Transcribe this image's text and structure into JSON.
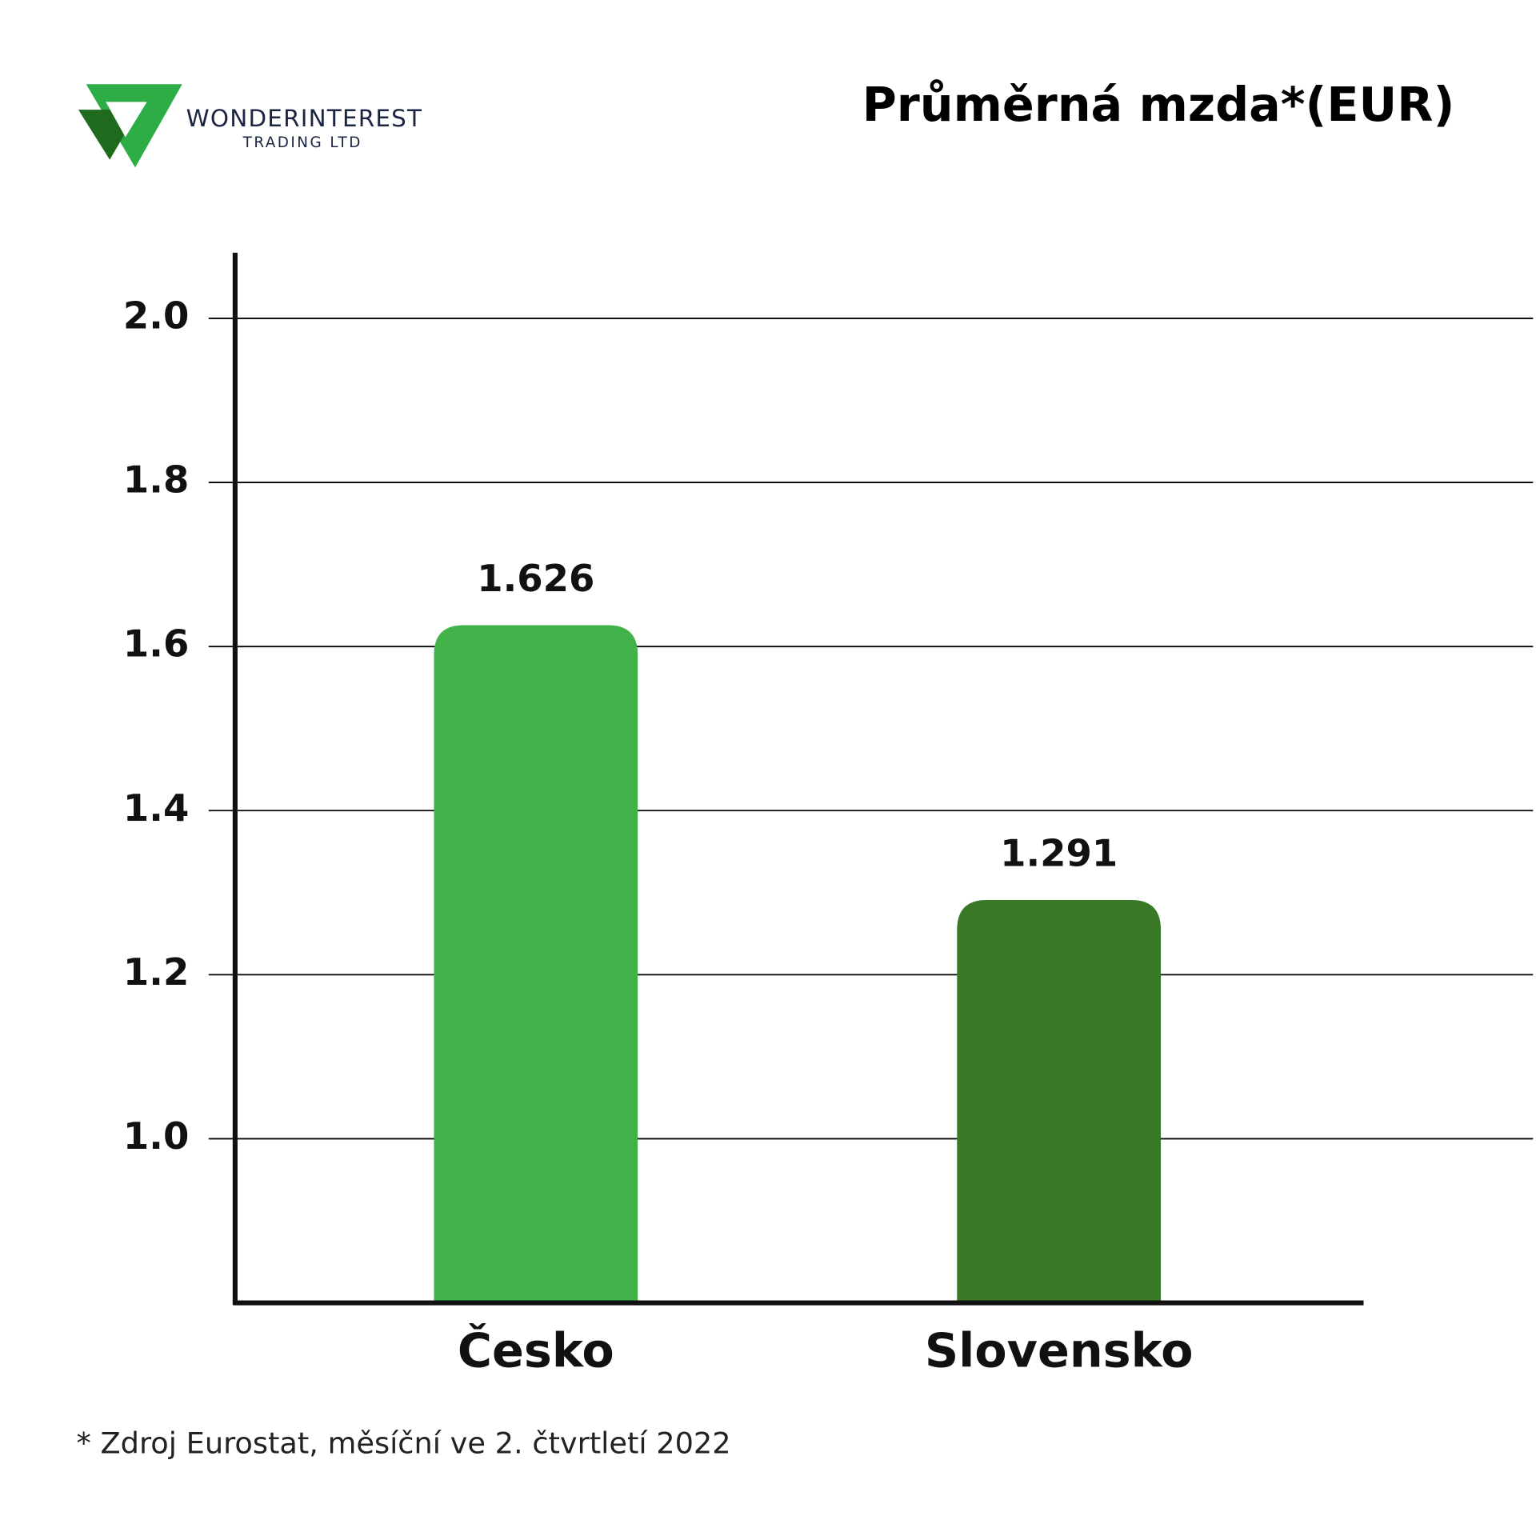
{
  "logo": {
    "name": "WONDERINTEREST",
    "tagline": "TRADING LTD"
  },
  "chart_data": {
    "type": "bar",
    "title": "Průměrná mzda*(EUR)",
    "categories": [
      "Česko",
      "Slovensko"
    ],
    "values": [
      1.626,
      1.291
    ],
    "colors": [
      "#41b24a",
      "#387826"
    ],
    "ylim": [
      0.8,
      2.08
    ],
    "yticks": [
      {
        "value": 1,
        "label": "1.0"
      },
      1.2,
      1.4,
      1.6,
      1.8,
      {
        "value": 2,
        "label": "2.0"
      }
    ],
    "grid": true,
    "note": "* Zdroj Eurostat, měsíční ve 2. čtvrtletí 2022"
  }
}
